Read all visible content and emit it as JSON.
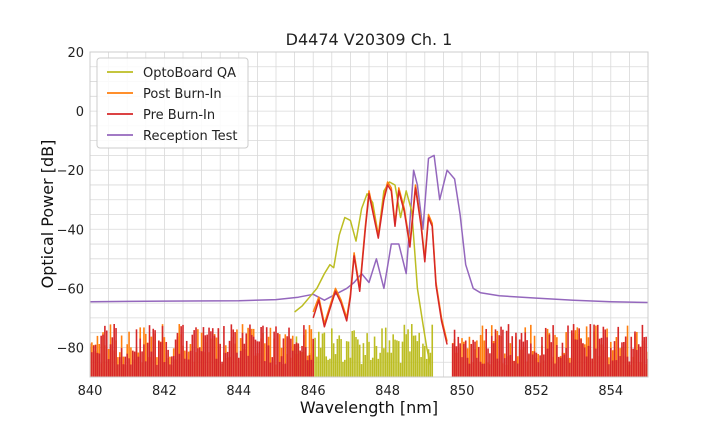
{
  "chart_data": {
    "type": "line",
    "title": "D4474 V20309 Ch. 1",
    "xlabel": "Wavelength [nm]",
    "ylabel": "Optical Power [dB]",
    "xlim": [
      840,
      855
    ],
    "ylim": [
      -90,
      20
    ],
    "xticks": [
      840,
      842,
      844,
      846,
      848,
      850,
      852,
      854
    ],
    "yticks": [
      20,
      0,
      -20,
      -40,
      -60,
      -80
    ],
    "ytick_labels": [
      "20",
      "0",
      "−20",
      "−40",
      "−60",
      "−80"
    ],
    "grid": true,
    "legend_position": "top-left",
    "series": [
      {
        "name": "OptoBoard QA",
        "color": "#bcbd22",
        "noise_band": [
          845.5,
          849.2
        ],
        "x": [
          845.5,
          845.7,
          845.9,
          846.1,
          846.3,
          846.45,
          846.55,
          846.7,
          846.85,
          847.0,
          847.15,
          847.3,
          847.45,
          847.6,
          847.75,
          847.9,
          848.05,
          848.2,
          848.35,
          848.5,
          848.65,
          848.8,
          848.95,
          849.05,
          849.15
        ],
        "y": [
          -68,
          -66,
          -63,
          -60,
          -55,
          -52,
          -53,
          -42,
          -36,
          -37,
          -44,
          -33,
          -28,
          -31,
          -42,
          -27,
          -24,
          -25,
          -36,
          -27,
          -34,
          -60,
          -72,
          -80,
          -86
        ]
      },
      {
        "name": "Post Burn-In",
        "color": "#ff7f0e",
        "noise_band": [
          840,
          855
        ],
        "gap": [
          846.0,
          849.7
        ],
        "x": [
          846.0,
          846.15,
          846.3,
          846.45,
          846.6,
          846.75,
          846.9,
          847.0,
          847.1,
          847.25,
          847.4,
          847.5,
          847.6,
          847.75,
          847.9,
          848.0,
          848.1,
          848.2,
          848.3,
          848.45,
          848.6,
          848.75,
          848.9,
          849.0,
          849.1,
          849.2,
          849.3,
          849.45,
          849.6
        ],
        "y": [
          -68,
          -63,
          -72,
          -66,
          -60,
          -64,
          -70,
          -62,
          -48,
          -60,
          -39,
          -27,
          -33,
          -42,
          -29,
          -24,
          -26,
          -38,
          -26,
          -33,
          -45,
          -25,
          -38,
          -50,
          -35,
          -38,
          -58,
          -70,
          -78
        ]
      },
      {
        "name": "Pre Burn-In",
        "color": "#d62728",
        "noise_band": [
          840,
          855
        ],
        "gap": [
          846.0,
          849.7
        ],
        "x": [
          846.0,
          846.15,
          846.3,
          846.45,
          846.6,
          846.75,
          846.9,
          847.0,
          847.1,
          847.25,
          847.4,
          847.5,
          847.6,
          847.75,
          847.9,
          848.0,
          848.1,
          848.2,
          848.3,
          848.45,
          848.6,
          848.75,
          848.9,
          849.0,
          849.1,
          849.2,
          849.3,
          849.45,
          849.6
        ],
        "y": [
          -70,
          -64,
          -73,
          -67,
          -61,
          -65,
          -71,
          -63,
          -49,
          -61,
          -40,
          -28,
          -34,
          -43,
          -30,
          -25,
          -27,
          -39,
          -27,
          -34,
          -46,
          -26,
          -39,
          -51,
          -36,
          -39,
          -59,
          -71,
          -79
        ]
      },
      {
        "name": "Reception Test",
        "color": "#9467bd",
        "noise_band": null,
        "x": [
          840,
          842,
          844,
          845,
          845.6,
          846.0,
          846.3,
          846.6,
          846.9,
          847.1,
          847.3,
          847.5,
          847.7,
          847.9,
          848.1,
          848.3,
          848.5,
          848.7,
          848.8,
          848.95,
          849.1,
          849.25,
          849.4,
          849.6,
          849.8,
          849.95,
          850.1,
          850.3,
          850.5,
          851,
          852,
          853,
          854,
          855
        ],
        "y": [
          -64.5,
          -64.3,
          -64.2,
          -63.8,
          -63,
          -62,
          -64,
          -62,
          -60,
          -58,
          -55,
          -58,
          -50,
          -60,
          -45,
          -45,
          -55,
          -20,
          -25,
          -40,
          -16,
          -15,
          -30,
          -20,
          -23,
          -35,
          -52,
          -60,
          -61.5,
          -62.5,
          -63.3,
          -64,
          -64.5,
          -64.8
        ]
      }
    ]
  }
}
